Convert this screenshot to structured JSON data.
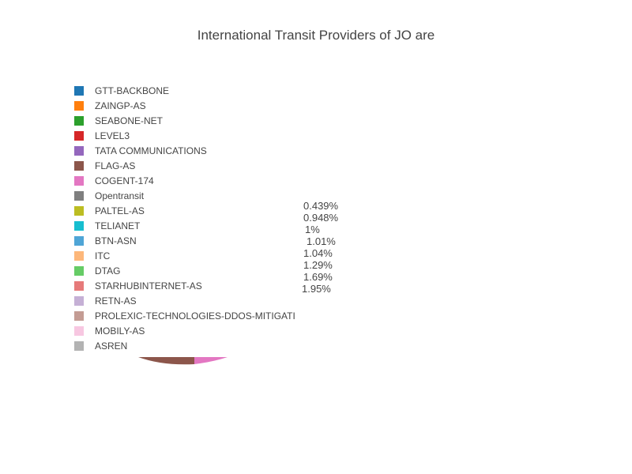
{
  "chart_data": {
    "type": "pie",
    "title": "International Transit Providers of JO are",
    "legend_position": "left",
    "series": [
      {
        "name": "GTT-BACKBONE",
        "color": "#1f77b4"
      },
      {
        "name": "ZAINGP-AS",
        "color": "#ff7f0e"
      },
      {
        "name": "SEABONE-NET",
        "color": "#2ca02c"
      },
      {
        "name": "LEVEL3",
        "color": "#d62728"
      },
      {
        "name": "TATA COMMUNICATIONS",
        "color": "#9467bd"
      },
      {
        "name": "FLAG-AS",
        "color": "#8c564b"
      },
      {
        "name": "COGENT-174",
        "color": "#e377c2"
      },
      {
        "name": "Opentransit",
        "color": "#7f7f7f"
      },
      {
        "name": "PALTEL-AS",
        "color": "#bcbd22"
      },
      {
        "name": "TELIANET",
        "color": "#17becf"
      },
      {
        "name": "BTN-ASN",
        "color": "#4fa5d6"
      },
      {
        "name": "ITC",
        "color": "#fdb77a"
      },
      {
        "name": "DTAG",
        "color": "#66cc66"
      },
      {
        "name": "STARHUBINTERNET-AS",
        "color": "#e67a7a"
      },
      {
        "name": "RETN-AS",
        "color": "#c5b0d5"
      },
      {
        "name": "PROLEXIC-TECHNOLOGIES-DDOS-MITIGATI",
        "color": "#c49c94"
      },
      {
        "name": "MOBILY-AS",
        "color": "#f7c7e1"
      },
      {
        "name": "ASREN",
        "color": "#b3b3b3"
      }
    ],
    "visible_labels": [
      "0.439%",
      "0.948%",
      "1%",
      "1.01%",
      "1.04%",
      "1.29%",
      "1.69%",
      "1.95%"
    ]
  }
}
